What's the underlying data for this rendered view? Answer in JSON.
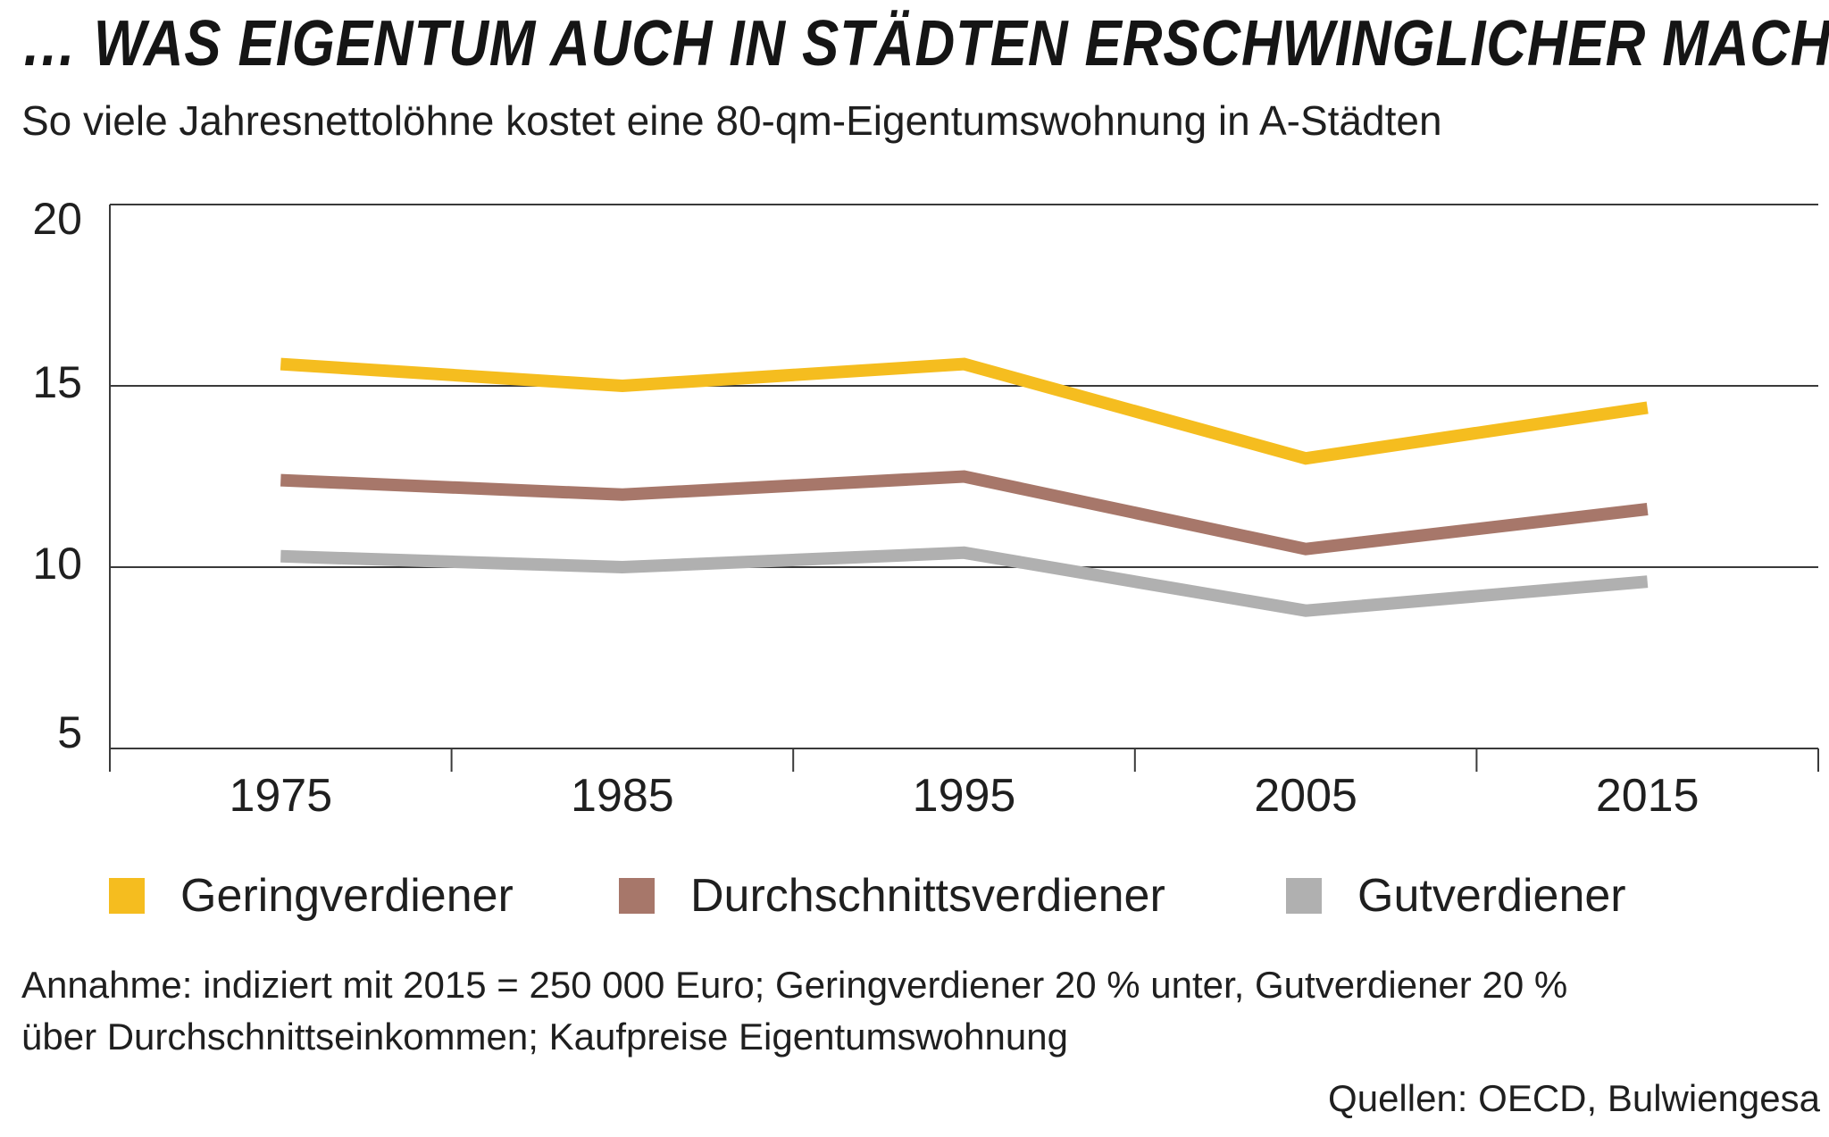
{
  "title": "… WAS EIGENTUM AUCH IN STÄDTEN ERSCHWINGLICHER MACHT",
  "subtitle": "So viele Jahresnettolöhne kostet eine 80-qm-Eigentumswohnung in A-Städten",
  "note": {
    "line1": "Annahme: indiziert mit 2015 = 250 000 Euro; Geringverdiener 20 % unter, Gutverdiener 20 %",
    "line2": "über Durchschnittseinkommen; Kaufpreise Eigentumswohnung"
  },
  "source": "Quellen: OECD, Bulwiengesa",
  "chart_data": {
    "type": "line",
    "x": [
      "1975",
      "1985",
      "1995",
      "2005",
      "2015"
    ],
    "ylim": [
      5,
      20
    ],
    "yticks": [
      20,
      15,
      10,
      5
    ],
    "grid": true,
    "legend_position": "bottom",
    "series": [
      {
        "name": "Geringverdiener",
        "color": "#f5bd1f",
        "values": [
          15.6,
          15.0,
          15.6,
          13.0,
          14.4
        ]
      },
      {
        "name": "Durchschnittsverdiener",
        "color": "#a7776a",
        "values": [
          12.4,
          12.0,
          12.5,
          10.5,
          11.6
        ]
      },
      {
        "name": "Gutverdiener",
        "color": "#b0b0b0",
        "values": [
          10.3,
          10.0,
          10.4,
          8.8,
          9.6
        ]
      }
    ]
  }
}
